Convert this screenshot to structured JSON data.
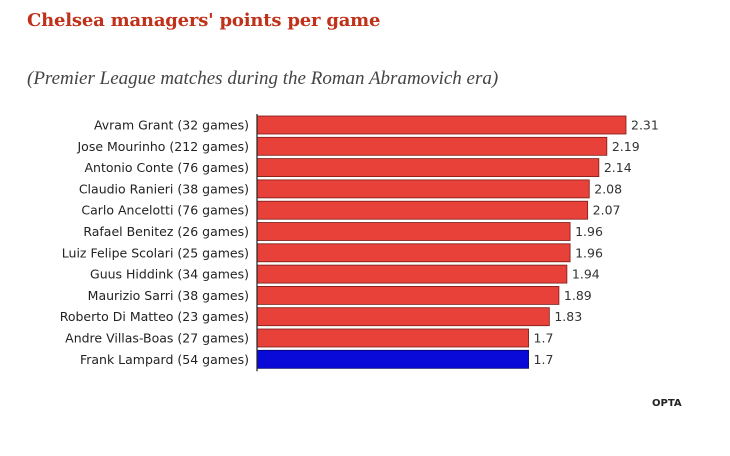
{
  "chart_data": {
    "type": "bar",
    "orientation": "horizontal",
    "title": "Chelsea managers' points per game",
    "subtitle": "(Premier League matches during the Roman Abramovich era)",
    "categories": [
      "Avram Grant (32 games)",
      "Jose Mourinho (212 games)",
      "Antonio Conte (76 games)",
      "Claudio Ranieri (38 games)",
      "Carlo Ancelotti (76 games)",
      "Rafael Benitez (26 games)",
      "Luiz Felipe Scolari (25 games)",
      "Guus Hiddink (34 games)",
      "Maurizio Sarri (38 games)",
      "Roberto Di Matteo (23 games)",
      "Andre Villas-Boas (27 games)",
      "Frank Lampard (54 games)"
    ],
    "values": [
      2.31,
      2.19,
      2.14,
      2.08,
      2.07,
      1.96,
      1.96,
      1.94,
      1.89,
      1.83,
      1.7,
      1.7
    ],
    "value_labels": [
      "2.31",
      "2.19",
      "2.14",
      "2.08",
      "2.07",
      "1.96",
      "1.96",
      "1.94",
      "1.89",
      "1.83",
      "1.7",
      "1.7"
    ],
    "highlight_index": 11,
    "colors": {
      "bar": "#e8413a",
      "highlight": "#0a0ad8",
      "border": "#7a1a16",
      "axis": "#222222"
    },
    "xlim": [
      0,
      2.31
    ],
    "xlabel": "",
    "ylabel": "",
    "grid": false,
    "source": "OPTA"
  }
}
